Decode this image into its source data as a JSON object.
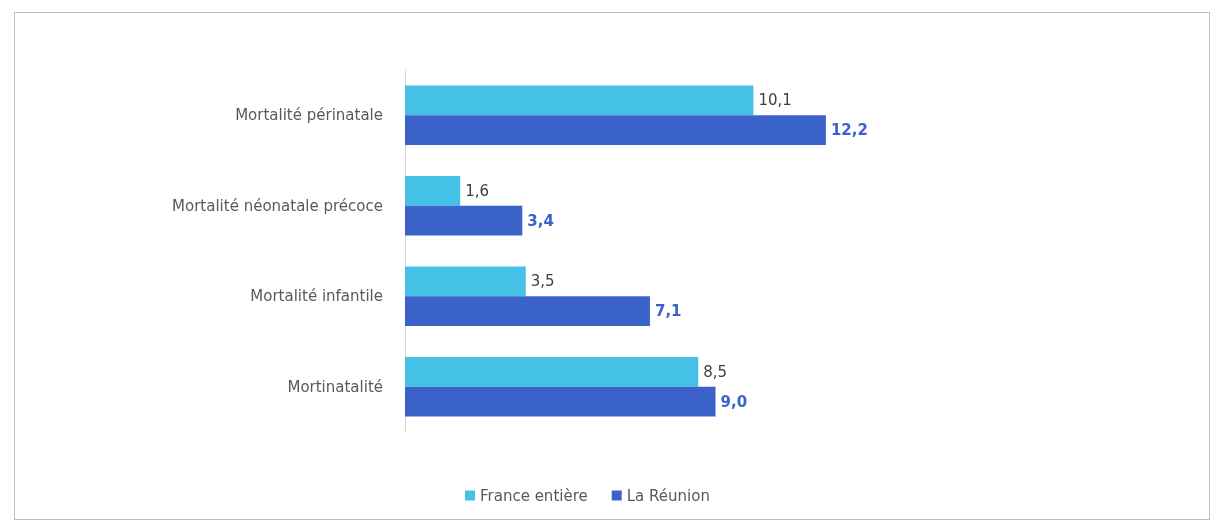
{
  "chart_data": {
    "type": "bar",
    "orientation": "horizontal",
    "categories": [
      "Mortalité périnatale",
      "Mortalité néonatale précoce",
      "Mortalité infantile",
      "Mortinatalité"
    ],
    "series": [
      {
        "name": "France entière",
        "color": "#45c1e8",
        "values": [
          10.1,
          1.6,
          3.5,
          8.5
        ],
        "value_labels": [
          "10,1",
          "1,6",
          "3,5",
          "8,5"
        ]
      },
      {
        "name": "La Réunion",
        "color": "#3a62c8",
        "values": [
          12.2,
          3.4,
          7.1,
          9.0
        ],
        "value_labels": [
          "12,2",
          "3,4",
          "7,1",
          "9,0"
        ]
      }
    ],
    "tick_labels": "y",
    "legend": "bottom"
  }
}
